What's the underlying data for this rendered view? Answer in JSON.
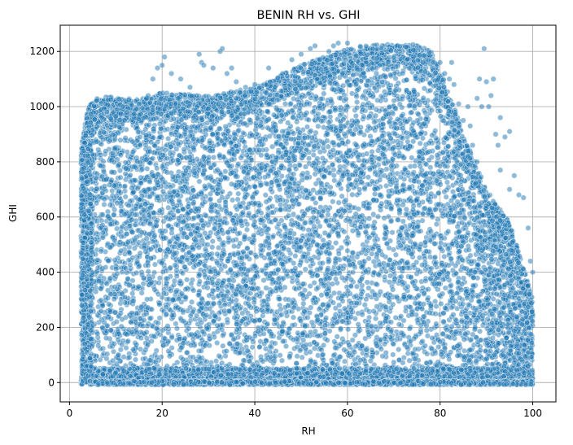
{
  "chart_data": {
    "type": "scatter",
    "title": "BENIN RH vs. GHI",
    "xlabel": "RH",
    "ylabel": "GHI",
    "xlim": [
      -2,
      105
    ],
    "ylim": [
      -70,
      1295
    ],
    "xticks": [
      0,
      20,
      40,
      60,
      80,
      100
    ],
    "yticks": [
      0,
      200,
      400,
      600,
      800,
      1000,
      1200
    ],
    "grid": true,
    "marker_color": "#1f77b4",
    "marker_alpha": 0.5,
    "marker_edge_color": "#ffffff",
    "envelope": {
      "rh": [
        2.5,
        4,
        6,
        8,
        10,
        15,
        20,
        30,
        40,
        45,
        50,
        55,
        60,
        65,
        70,
        75,
        78,
        80,
        82,
        85,
        88,
        90,
        92,
        95,
        98,
        100
      ],
      "ghi_max": [
        850,
        1000,
        1030,
        1040,
        1030,
        1030,
        1050,
        1040,
        1070,
        1110,
        1150,
        1180,
        1210,
        1225,
        1225,
        1225,
        1200,
        1130,
        1050,
        900,
        780,
        700,
        650,
        580,
        420,
        300
      ]
    },
    "outliers": [
      [
        17,
        1040
      ],
      [
        18,
        1100
      ],
      [
        19,
        1140
      ],
      [
        20,
        1150
      ],
      [
        20.5,
        1180
      ],
      [
        22,
        1120
      ],
      [
        24,
        1100
      ],
      [
        26,
        1070
      ],
      [
        28,
        1190
      ],
      [
        28.5,
        1160
      ],
      [
        29,
        1150
      ],
      [
        31,
        1140
      ],
      [
        32.5,
        1200
      ],
      [
        33,
        1210
      ],
      [
        34,
        1120
      ],
      [
        35,
        1140
      ],
      [
        36,
        1090
      ],
      [
        38,
        1070
      ],
      [
        40,
        1080
      ],
      [
        43,
        1140
      ],
      [
        46,
        1120
      ],
      [
        48,
        1170
      ],
      [
        50,
        1190
      ],
      [
        52,
        1210
      ],
      [
        53,
        1220
      ],
      [
        54,
        1170
      ],
      [
        56,
        1200
      ],
      [
        57,
        1220
      ],
      [
        58,
        1230
      ],
      [
        60,
        1230
      ],
      [
        80,
        1160
      ],
      [
        81,
        1120
      ],
      [
        82,
        1100
      ],
      [
        82.5,
        1160
      ],
      [
        83,
        1080
      ],
      [
        84,
        1010
      ],
      [
        85,
        950
      ],
      [
        86,
        1000
      ],
      [
        86.5,
        930
      ],
      [
        87,
        860
      ],
      [
        88,
        1030
      ],
      [
        88.5,
        1100
      ],
      [
        89,
        1000
      ],
      [
        89.5,
        1210
      ],
      [
        90,
        1090
      ],
      [
        90.5,
        1000
      ],
      [
        91,
        1040
      ],
      [
        91.5,
        1100
      ],
      [
        92,
        900
      ],
      [
        92.5,
        860
      ],
      [
        93,
        960
      ],
      [
        94,
        890
      ],
      [
        95,
        910
      ],
      [
        96,
        750
      ],
      [
        97,
        680
      ],
      [
        98,
        670
      ],
      [
        99,
        560
      ],
      [
        100,
        400
      ],
      [
        99.5,
        440
      ],
      [
        86,
        820
      ],
      [
        88,
        800
      ],
      [
        90,
        640
      ],
      [
        93,
        770
      ],
      [
        95,
        700
      ]
    ]
  }
}
